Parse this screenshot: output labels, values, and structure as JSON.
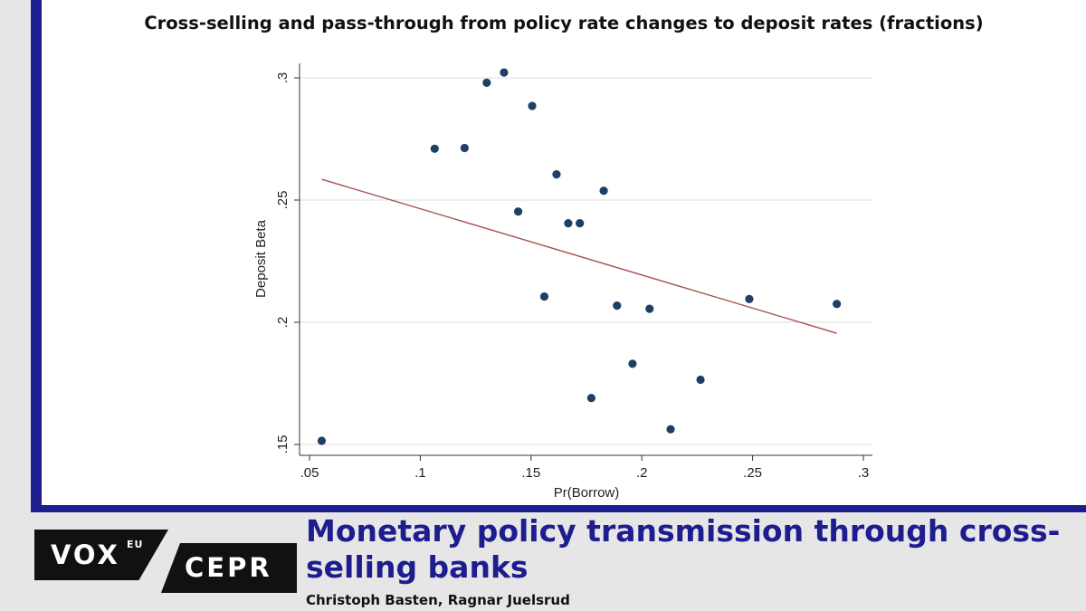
{
  "chart_data": {
    "type": "scatter",
    "title": "Cross-selling and pass-through from policy rate changes to deposit rates (fractions)",
    "xlabel": "Pr(Borrow)",
    "ylabel": "Deposit Beta",
    "xlim": [
      0.05,
      0.3
    ],
    "ylim": [
      0.15,
      0.3
    ],
    "xticks": [
      ".05",
      ".1",
      ".15",
      ".2",
      ".25",
      ".3"
    ],
    "yticks": [
      ".15",
      ".2",
      ".25",
      ".3"
    ],
    "grid": "horizontal",
    "legend": "none",
    "colors": {
      "points": "#1f3f66",
      "fit_line": "#a55050",
      "grid": "#e3e3e3"
    },
    "points": [
      {
        "x": 0.0555,
        "y": 0.1515
      },
      {
        "x": 0.1065,
        "y": 0.271
      },
      {
        "x": 0.12,
        "y": 0.2713
      },
      {
        "x": 0.13,
        "y": 0.298
      },
      {
        "x": 0.1378,
        "y": 0.3022
      },
      {
        "x": 0.1442,
        "y": 0.2453
      },
      {
        "x": 0.1505,
        "y": 0.2885
      },
      {
        "x": 0.156,
        "y": 0.2105
      },
      {
        "x": 0.1615,
        "y": 0.2605
      },
      {
        "x": 0.1668,
        "y": 0.2405
      },
      {
        "x": 0.172,
        "y": 0.2405
      },
      {
        "x": 0.1772,
        "y": 0.169
      },
      {
        "x": 0.1828,
        "y": 0.2538
      },
      {
        "x": 0.1888,
        "y": 0.2068
      },
      {
        "x": 0.1958,
        "y": 0.183
      },
      {
        "x": 0.2035,
        "y": 0.2055
      },
      {
        "x": 0.213,
        "y": 0.1562
      },
      {
        "x": 0.2265,
        "y": 0.1765
      },
      {
        "x": 0.2485,
        "y": 0.2095
      },
      {
        "x": 0.288,
        "y": 0.2075
      }
    ],
    "fit_line": [
      {
        "x": 0.0555,
        "y": 0.2585
      },
      {
        "x": 0.288,
        "y": 0.1955
      }
    ]
  },
  "branding": {
    "vox": "VOX",
    "vox_sup": "EU",
    "cepr": "CEPR"
  },
  "article": {
    "title": "Monetary policy transmission through cross-selling banks",
    "authors": "Christoph Basten, Ragnar Juelsrud"
  }
}
